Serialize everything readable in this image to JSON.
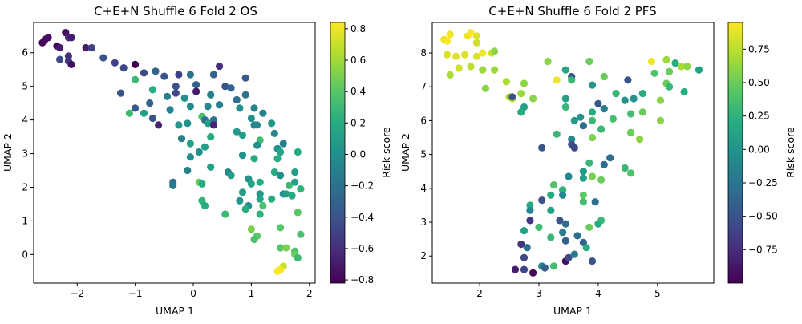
{
  "chart_data": [
    {
      "type": "scatter",
      "title": "C+E+N Shuffle 6 Fold 2 OS",
      "xlabel": "UMAP 1",
      "ylabel": "UMAP 2",
      "xlim": [
        -2.75,
        2.1
      ],
      "ylim": [
        -0.85,
        6.9
      ],
      "xticks": [
        -2,
        -1,
        0,
        1,
        2
      ],
      "yticks": [
        0,
        1,
        2,
        3,
        4,
        5,
        6
      ],
      "colorbar": {
        "label": "Risk score",
        "range": [
          -0.82,
          0.84
        ],
        "ticks": [
          -0.8,
          -0.6,
          -0.4,
          -0.2,
          0.0,
          0.2,
          0.4,
          0.6,
          0.8
        ]
      },
      "points": [
        [
          -2.6,
          6.3,
          -0.8
        ],
        [
          -2.55,
          6.4,
          -0.78
        ],
        [
          -2.5,
          6.45,
          -0.75
        ],
        [
          -2.35,
          6.2,
          -0.8
        ],
        [
          -2.3,
          6.15,
          -0.7
        ],
        [
          -2.2,
          6.6,
          -0.75
        ],
        [
          -2.15,
          6.45,
          -0.6
        ],
        [
          -2.1,
          6.45,
          -0.7
        ],
        [
          -2.3,
          5.8,
          -0.45
        ],
        [
          -2.15,
          5.9,
          -0.6
        ],
        [
          -2.15,
          5.75,
          -0.55
        ],
        [
          -2.1,
          5.65,
          -0.75
        ],
        [
          -1.85,
          6.15,
          -0.7
        ],
        [
          -1.75,
          6.15,
          -0.5
        ],
        [
          -1.55,
          5.85,
          -0.4
        ],
        [
          -1.35,
          5.7,
          -0.5
        ],
        [
          -1.2,
          5.55,
          -0.45
        ],
        [
          -1.0,
          5.65,
          -0.85
        ],
        [
          -1.25,
          4.8,
          -0.4
        ],
        [
          -1.1,
          4.2,
          0.3
        ],
        [
          -0.85,
          4.2,
          0.1
        ],
        [
          -1.0,
          4.35,
          -0.35
        ],
        [
          -1.0,
          5.2,
          0.3
        ],
        [
          -0.85,
          5.4,
          -0.45
        ],
        [
          -0.65,
          5.45,
          -0.3
        ],
        [
          -0.7,
          4.9,
          0.2
        ],
        [
          -0.75,
          4.5,
          -0.3
        ],
        [
          -0.7,
          4.05,
          -0.4
        ],
        [
          -0.6,
          3.85,
          -0.65
        ],
        [
          -0.5,
          5.3,
          -0.4
        ],
        [
          -0.45,
          4.7,
          -0.1
        ],
        [
          -0.4,
          4.3,
          -0.1
        ],
        [
          -0.3,
          5.0,
          -0.4
        ],
        [
          -0.3,
          4.8,
          -0.45
        ],
        [
          -0.15,
          4.65,
          0.0
        ],
        [
          -0.25,
          5.35,
          -0.5
        ],
        [
          -0.05,
          5.35,
          -0.2
        ],
        [
          0.05,
          5.05,
          -0.3
        ],
        [
          0.05,
          4.85,
          -0.7
        ],
        [
          -0.05,
          4.4,
          -0.05
        ],
        [
          -0.1,
          3.9,
          0.0
        ],
        [
          -0.25,
          3.85,
          0.05
        ],
        [
          -0.2,
          3.45,
          -0.1
        ],
        [
          -0.05,
          3.3,
          0.1
        ],
        [
          -0.05,
          2.9,
          0.0
        ],
        [
          -0.1,
          2.5,
          -0.1
        ],
        [
          -0.35,
          2.15,
          -0.2
        ],
        [
          -0.35,
          2.05,
          -0.15
        ],
        [
          0.15,
          4.1,
          0.35
        ],
        [
          0.2,
          4.0,
          -0.2
        ],
        [
          0.25,
          3.9,
          0.1
        ],
        [
          0.35,
          4.0,
          -0.2
        ],
        [
          0.25,
          4.4,
          -0.05
        ],
        [
          0.3,
          4.75,
          -0.1
        ],
        [
          0.35,
          5.35,
          -0.3
        ],
        [
          0.45,
          5.6,
          -0.6
        ],
        [
          0.35,
          3.85,
          -0.65
        ],
        [
          0.45,
          4.45,
          -0.1
        ],
        [
          0.55,
          5.0,
          -0.4
        ],
        [
          0.65,
          4.95,
          -0.3
        ],
        [
          0.75,
          4.6,
          -0.2
        ],
        [
          0.8,
          4.35,
          0.0
        ],
        [
          0.9,
          5.25,
          -0.35
        ],
        [
          0.9,
          4.75,
          -0.2
        ],
        [
          1.05,
          4.35,
          -0.1
        ],
        [
          1.0,
          4.05,
          0.0
        ],
        [
          1.05,
          3.85,
          -0.1
        ],
        [
          1.1,
          3.85,
          -0.05
        ],
        [
          1.2,
          4.2,
          -0.1
        ],
        [
          1.35,
          3.9,
          0.05
        ],
        [
          1.4,
          3.6,
          -0.05
        ],
        [
          1.55,
          3.3,
          -0.1
        ],
        [
          1.45,
          3.15,
          0.0
        ],
        [
          1.5,
          3.05,
          0.15
        ],
        [
          1.45,
          2.85,
          0.2
        ],
        [
          1.8,
          3.05,
          0.2
        ],
        [
          0.2,
          3.2,
          0.1
        ],
        [
          0.3,
          3.5,
          0.2
        ],
        [
          0.1,
          3.05,
          0.0
        ],
        [
          0.3,
          2.6,
          0.1
        ],
        [
          0.1,
          2.15,
          0.45
        ],
        [
          0.15,
          2.1,
          0.2
        ],
        [
          0.15,
          1.6,
          0.25
        ],
        [
          0.2,
          1.45,
          0.2
        ],
        [
          0.6,
          2.45,
          -0.05
        ],
        [
          0.65,
          2.35,
          0.1
        ],
        [
          0.8,
          1.6,
          0.05
        ],
        [
          0.85,
          1.85,
          0.1
        ],
        [
          0.95,
          1.45,
          0.0
        ],
        [
          0.85,
          2.95,
          0.0
        ],
        [
          0.75,
          3.65,
          0.05
        ],
        [
          0.85,
          3.55,
          0.1
        ],
        [
          0.95,
          2.25,
          0.0
        ],
        [
          1.0,
          2.1,
          0.15
        ],
        [
          1.05,
          2.85,
          0.2
        ],
        [
          1.15,
          3.4,
          0.3
        ],
        [
          1.1,
          3.25,
          0.0
        ],
        [
          1.15,
          2.15,
          0.2
        ],
        [
          1.15,
          1.8,
          0.05
        ],
        [
          1.15,
          1.65,
          0.15
        ],
        [
          1.2,
          1.45,
          0.35
        ],
        [
          1.15,
          1.2,
          0.25
        ],
        [
          1.35,
          1.65,
          0.2
        ],
        [
          1.4,
          2.45,
          0.2
        ],
        [
          1.5,
          2.35,
          0.0
        ],
        [
          1.55,
          1.8,
          0.0
        ],
        [
          1.6,
          1.8,
          0.1
        ],
        [
          1.75,
          2.45,
          0.1
        ],
        [
          1.65,
          2.05,
          0.3
        ],
        [
          1.7,
          1.75,
          0.2
        ],
        [
          1.75,
          2.15,
          0.1
        ],
        [
          1.85,
          1.95,
          0.25
        ],
        [
          1.8,
          1.25,
          0.4
        ],
        [
          1.5,
          0.8,
          0.4
        ],
        [
          1.85,
          0.6,
          0.35
        ],
        [
          1.5,
          0.2,
          0.4
        ],
        [
          1.75,
          0.1,
          0.35
        ],
        [
          1.75,
          0.0,
          0.45
        ],
        [
          1.8,
          -0.1,
          0.3
        ],
        [
          1.55,
          -0.35,
          0.7
        ],
        [
          1.5,
          -0.45,
          0.8
        ],
        [
          1.45,
          -0.5,
          0.85
        ],
        [
          0.55,
          1.2,
          0.3
        ],
        [
          0.9,
          1.35,
          0.2
        ],
        [
          1.0,
          0.75,
          0.5
        ],
        [
          1.1,
          0.55,
          0.4
        ],
        [
          1.05,
          0.45,
          0.35
        ],
        [
          1.6,
          0.2,
          0.5
        ]
      ]
    },
    {
      "type": "scatter",
      "title": "C+E+N Shuffle 6 Fold 2 PFS",
      "xlabel": "UMAP 1",
      "ylabel": "UMAP 2",
      "xlim": [
        1.2,
        5.95
      ],
      "ylim": [
        1.2,
        8.9
      ],
      "xticks": [
        2,
        3,
        4,
        5
      ],
      "yticks": [
        2,
        3,
        4,
        5,
        6,
        7,
        8
      ],
      "colorbar": {
        "label": "Risk score",
        "range": [
          -1.0,
          0.95
        ],
        "ticks": [
          -0.75,
          -0.5,
          -0.25,
          0.0,
          0.25,
          0.5,
          0.75
        ]
      },
      "points": [
        [
          1.4,
          8.4,
          0.9
        ],
        [
          1.45,
          8.35,
          0.95
        ],
        [
          1.5,
          8.55,
          0.9
        ],
        [
          1.45,
          7.95,
          0.85
        ],
        [
          1.6,
          7.9,
          0.85
        ],
        [
          1.65,
          7.55,
          0.8
        ],
        [
          1.5,
          7.35,
          0.7
        ],
        [
          1.75,
          7.95,
          0.85
        ],
        [
          1.8,
          8.5,
          0.9
        ],
        [
          1.85,
          8.6,
          0.95
        ],
        [
          1.95,
          8.5,
          0.85
        ],
        [
          1.95,
          8.3,
          0.8
        ],
        [
          1.95,
          7.9,
          0.85
        ],
        [
          2.05,
          8.0,
          0.9
        ],
        [
          1.85,
          7.6,
          0.75
        ],
        [
          2.05,
          7.5,
          0.65
        ],
        [
          2.2,
          8.0,
          0.8
        ],
        [
          2.25,
          8.05,
          0.6
        ],
        [
          2.1,
          6.95,
          0.6
        ],
        [
          2.25,
          7.5,
          0.65
        ],
        [
          2.45,
          7.15,
          0.7
        ],
        [
          2.5,
          6.7,
          0.7
        ],
        [
          2.55,
          6.65,
          0.75
        ],
        [
          2.75,
          7.1,
          0.6
        ],
        [
          2.7,
          6.8,
          0.65
        ],
        [
          2.55,
          6.7,
          -0.5
        ],
        [
          2.75,
          6.4,
          0.1
        ],
        [
          2.7,
          6.25,
          0.2
        ],
        [
          2.9,
          6.65,
          0.6
        ],
        [
          3.15,
          7.75,
          0.6
        ],
        [
          3.3,
          7.2,
          0.9
        ],
        [
          3.45,
          7.5,
          0.15
        ],
        [
          3.55,
          7.3,
          -0.5
        ],
        [
          3.55,
          7.2,
          0.3
        ],
        [
          3.85,
          7.75,
          0.5
        ],
        [
          3.9,
          7.05,
          0.0
        ],
        [
          4.1,
          7.3,
          0.5
        ],
        [
          4.3,
          6.8,
          0.3
        ],
        [
          4.5,
          7.2,
          -0.5
        ],
        [
          4.45,
          6.6,
          0.0
        ],
        [
          4.6,
          6.65,
          0.0
        ],
        [
          4.75,
          6.8,
          0.2
        ],
        [
          4.9,
          7.75,
          0.9
        ],
        [
          5.15,
          7.8,
          0.65
        ],
        [
          5.3,
          7.7,
          0.2
        ],
        [
          5.4,
          7.6,
          0.7
        ],
        [
          5.5,
          7.6,
          0.6
        ],
        [
          5.7,
          7.5,
          0.1
        ],
        [
          5.2,
          7.45,
          0.5
        ],
        [
          4.95,
          7.4,
          0.4
        ],
        [
          5.15,
          7.1,
          0.5
        ],
        [
          5.2,
          7.0,
          0.3
        ],
        [
          5.05,
          6.6,
          0.6
        ],
        [
          5.45,
          6.85,
          0.2
        ],
        [
          4.75,
          6.25,
          0.5
        ],
        [
          5.05,
          6.0,
          0.6
        ],
        [
          4.55,
          6.2,
          0.35
        ],
        [
          4.25,
          6.05,
          0.35
        ],
        [
          4.1,
          6.35,
          -0.2
        ],
        [
          3.9,
          6.25,
          0.2
        ],
        [
          3.45,
          6.65,
          0.1
        ],
        [
          3.45,
          6.4,
          0.3
        ],
        [
          3.6,
          6.0,
          0.05
        ],
        [
          3.7,
          6.1,
          0.0
        ],
        [
          3.9,
          6.0,
          0.3
        ],
        [
          3.75,
          5.85,
          -0.3
        ],
        [
          3.55,
          5.45,
          -0.05
        ],
        [
          3.3,
          5.6,
          0.3
        ],
        [
          3.05,
          5.2,
          -0.5
        ],
        [
          3.55,
          5.3,
          -0.5
        ],
        [
          3.6,
          5.2,
          -0.6
        ],
        [
          4.05,
          5.75,
          0.3
        ],
        [
          4.55,
          5.65,
          0.5
        ],
        [
          4.7,
          5.45,
          0.6
        ],
        [
          3.9,
          5.5,
          0.55
        ],
        [
          4.2,
          4.9,
          -0.3
        ],
        [
          4.1,
          4.7,
          -0.3
        ],
        [
          3.85,
          4.75,
          0.3
        ],
        [
          3.75,
          4.5,
          0.05
        ],
        [
          3.75,
          4.3,
          0.1
        ],
        [
          3.5,
          4.35,
          -0.1
        ],
        [
          3.25,
          4.1,
          0.4
        ],
        [
          3.4,
          3.95,
          0.25
        ],
        [
          3.05,
          3.65,
          -0.5
        ],
        [
          3.2,
          3.8,
          0.2
        ],
        [
          3.4,
          3.8,
          -0.1
        ],
        [
          3.75,
          3.8,
          0.45
        ],
        [
          3.75,
          3.6,
          0.35
        ],
        [
          3.9,
          4.35,
          0.55
        ],
        [
          4.05,
          4.25,
          0.5
        ],
        [
          4.45,
          4.6,
          0.3
        ],
        [
          4.55,
          4.45,
          0.4
        ],
        [
          3.95,
          3.6,
          -0.3
        ],
        [
          4.05,
          3.05,
          0.3
        ],
        [
          4.0,
          2.95,
          0.2
        ],
        [
          3.85,
          2.85,
          0.5
        ],
        [
          2.85,
          3.5,
          0.2
        ],
        [
          2.85,
          3.35,
          -0.1
        ],
        [
          3.2,
          3.35,
          0.1
        ],
        [
          3.35,
          3.05,
          -0.5
        ],
        [
          3.45,
          2.95,
          -0.3
        ],
        [
          2.85,
          3.05,
          -0.7
        ],
        [
          2.75,
          2.75,
          0.1
        ],
        [
          3.0,
          2.85,
          0.35
        ],
        [
          3.2,
          2.55,
          0.3
        ],
        [
          3.4,
          2.7,
          -0.2
        ],
        [
          3.45,
          2.45,
          -0.4
        ],
        [
          3.65,
          2.6,
          -0.3
        ],
        [
          3.75,
          2.4,
          -0.4
        ],
        [
          3.8,
          2.25,
          0.2
        ],
        [
          2.7,
          2.35,
          -0.7
        ],
        [
          2.8,
          2.25,
          -0.3
        ],
        [
          2.75,
          1.95,
          -0.6
        ],
        [
          3.05,
          1.7,
          -0.1
        ],
        [
          3.1,
          1.65,
          -0.4
        ],
        [
          3.25,
          1.7,
          0.35
        ],
        [
          2.6,
          1.6,
          -0.85
        ],
        [
          2.75,
          1.6,
          -0.6
        ],
        [
          2.9,
          1.5,
          -0.95
        ],
        [
          3.45,
          1.85,
          -0.9
        ],
        [
          3.5,
          1.95,
          -0.55
        ],
        [
          3.9,
          1.85,
          -0.5
        ],
        [
          3.6,
          2.05,
          -0.2
        ],
        [
          4.0,
          6.5,
          -0.45
        ]
      ]
    }
  ]
}
